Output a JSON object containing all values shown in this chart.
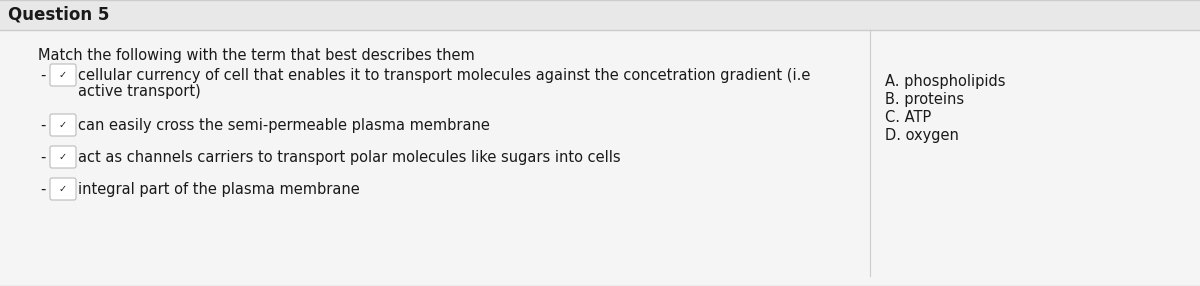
{
  "title": "Question 5",
  "subtitle": "Match the following with the term that best describes them",
  "row_lines": [
    [
      "cellular currency of cell that enables it to transport molecules against the concetration gradient (i.e",
      "active transport)"
    ],
    [
      "can easily cross the semi-permeable plasma membrane"
    ],
    [
      "act as channels carriers to transport polar molecules like sugars into cells"
    ],
    [
      "integral part of the plasma membrane"
    ]
  ],
  "options": [
    "A. phospholipids",
    "B. proteins",
    "C. ATP",
    "D. oxygen"
  ],
  "bg_color": "#f5f5f5",
  "title_bg": "#e8e8e8",
  "box_facecolor": "#ffffff",
  "box_edgecolor": "#bbbbbb",
  "text_color": "#1a1a1a",
  "title_border_color": "#cccccc",
  "separator_color": "#cccccc",
  "title_fontsize": 12,
  "body_fontsize": 10.5,
  "options_fontsize": 10.5
}
